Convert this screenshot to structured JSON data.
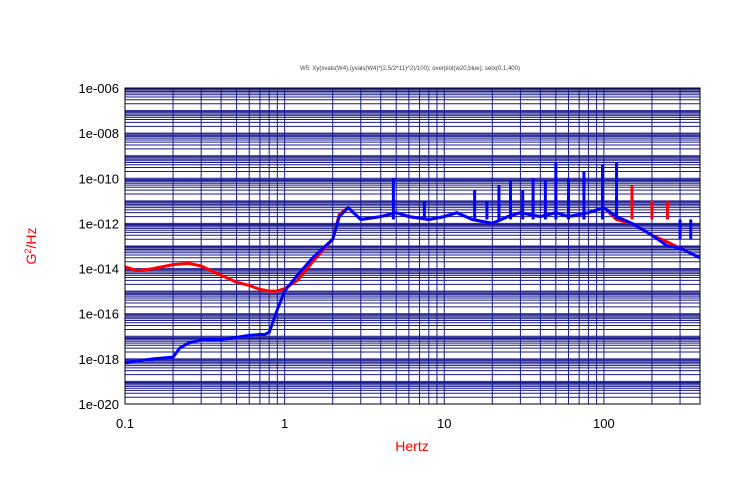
{
  "chart_data": {
    "type": "line",
    "title": "W5: Xy(xvals(W4),(yvals(W4)*(2.5/2^11)^2)/100); overplot(w20,blue); setx(0.1,400)",
    "xlabel": "Hertz",
    "ylabel_base": "G",
    "ylabel_sup": "2",
    "ylabel_rest": "/Hz",
    "x_scale": "log",
    "y_scale": "log",
    "xlim": [
      0.1,
      400
    ],
    "ylim": [
      1e-20,
      1e-06
    ],
    "x_tick_labels": [
      "0.1",
      "1",
      "10",
      "100"
    ],
    "x_tick_values": [
      0.1,
      1,
      10,
      100
    ],
    "y_tick_labels": [
      "1e-006",
      "1e-008",
      "1e-010",
      "1e-012",
      "1e-014",
      "1e-016",
      "1e-018",
      "1e-020"
    ],
    "y_tick_values": [
      1e-06,
      1e-08,
      1e-10,
      1e-12,
      1e-14,
      1e-16,
      1e-18,
      1e-20
    ],
    "grid": true,
    "colors": {
      "grid": "#1a1a8c",
      "axis": "#000000",
      "ylabel": "#ff0000",
      "xlabel": "#ff0000"
    },
    "series": [
      {
        "color": "#ff0000",
        "x": [
          0.1,
          0.12,
          0.15,
          0.2,
          0.25,
          0.3,
          0.4,
          0.5,
          0.6,
          0.7,
          0.8,
          0.9,
          1.0,
          1.2,
          1.5,
          2.0,
          2.2,
          2.5,
          3,
          4,
          5,
          6,
          8,
          10,
          12,
          15,
          20,
          25,
          30,
          40,
          50,
          60,
          80,
          100,
          120,
          150,
          200,
          250,
          300,
          400
        ],
        "y": [
          1.2e-14,
          8e-15,
          1e-14,
          1.5e-14,
          1.7e-14,
          1.3e-14,
          5e-15,
          2.5e-15,
          1.8e-15,
          1.2e-15,
          1e-15,
          1e-15,
          1.3e-15,
          3e-15,
          2e-14,
          2e-13,
          2.5e-12,
          5e-12,
          1.5e-12,
          2e-12,
          3e-12,
          2e-12,
          1.5e-12,
          2e-12,
          3e-12,
          1.5e-12,
          1e-12,
          2e-12,
          3e-12,
          2e-12,
          3e-12,
          2e-12,
          3e-12,
          5e-12,
          1.5e-12,
          1e-12,
          3e-13,
          1.5e-13,
          8e-14,
          3e-14
        ]
      },
      {
        "color": "#0000ff",
        "x": [
          0.1,
          0.12,
          0.15,
          0.2,
          0.22,
          0.25,
          0.3,
          0.4,
          0.5,
          0.6,
          0.7,
          0.75,
          0.8,
          0.9,
          1.0,
          1.2,
          1.5,
          2.0,
          2.2,
          2.5,
          3,
          4,
          5,
          6,
          8,
          10,
          12,
          15,
          20,
          25,
          30,
          40,
          50,
          60,
          80,
          100,
          120,
          150,
          200,
          250,
          300,
          400
        ],
        "y": [
          7e-19,
          8e-19,
          1e-18,
          1.2e-18,
          3e-18,
          5e-18,
          7e-18,
          7e-18,
          9e-18,
          1.1e-17,
          1.2e-17,
          1.2e-17,
          1.5e-17,
          1.5e-16,
          1e-15,
          5e-15,
          3e-14,
          2e-13,
          2e-12,
          5e-12,
          1.5e-12,
          2e-12,
          3e-12,
          2e-12,
          1.5e-12,
          2e-12,
          3e-12,
          1.5e-12,
          1e-12,
          2e-12,
          3e-12,
          2e-12,
          3e-12,
          2e-12,
          3e-12,
          5e-12,
          2e-12,
          1e-12,
          3e-13,
          1e-13,
          8e-14,
          3e-14
        ]
      }
    ],
    "peaks": [
      {
        "x": 4.8,
        "y": 1e-10,
        "color": "#0000ff"
      },
      {
        "x": 7.5,
        "y": 1e-11,
        "color": "#0000ff"
      },
      {
        "x": 15.5,
        "y": 3e-11,
        "color": "#0000ff"
      },
      {
        "x": 18.5,
        "y": 1e-11,
        "color": "#0000ff"
      },
      {
        "x": 22,
        "y": 5e-11,
        "color": "#0000ff"
      },
      {
        "x": 26,
        "y": 8e-11,
        "color": "#0000ff"
      },
      {
        "x": 31,
        "y": 3e-11,
        "color": "#0000ff"
      },
      {
        "x": 36,
        "y": 1e-10,
        "color": "#0000ff"
      },
      {
        "x": 43,
        "y": 8e-11,
        "color": "#0000ff"
      },
      {
        "x": 50,
        "y": 5e-10,
        "color": "#0000ff"
      },
      {
        "x": 60,
        "y": 1e-10,
        "color": "#0000ff"
      },
      {
        "x": 75,
        "y": 2e-10,
        "color": "#0000ff"
      },
      {
        "x": 98,
        "y": 4e-10,
        "color": "#0000ff"
      },
      {
        "x": 120,
        "y": 5e-10,
        "color": "#0000ff"
      },
      {
        "x": 150,
        "y": 5e-11,
        "color": "#ff0000"
      },
      {
        "x": 200,
        "y": 1e-11,
        "color": "#ff0000"
      },
      {
        "x": 250,
        "y": 1e-11,
        "color": "#ff0000"
      },
      {
        "x": 300,
        "y": 2e-13,
        "color": "#0000ff"
      },
      {
        "x": 350,
        "y": 2e-13,
        "color": "#0000ff"
      }
    ]
  }
}
